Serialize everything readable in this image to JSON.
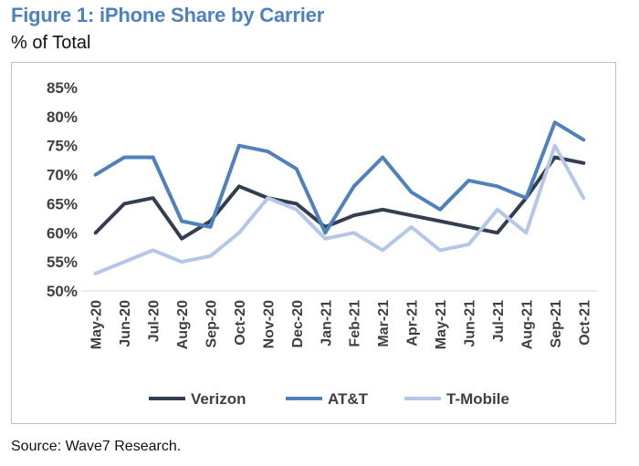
{
  "header": {
    "title": "Figure 1: iPhone Share by Carrier",
    "subtitle": "% of Total"
  },
  "footer": {
    "source": "Source: Wave7 Research."
  },
  "chart_data": {
    "type": "line",
    "title": "Figure 1: iPhone Share by Carrier",
    "ylabel": "% of Total",
    "xlabel": "",
    "ylim": [
      50,
      85
    ],
    "yticks": [
      "50%",
      "55%",
      "60%",
      "65%",
      "70%",
      "75%",
      "80%",
      "85%"
    ],
    "ytick_values": [
      50,
      55,
      60,
      65,
      70,
      75,
      80,
      85
    ],
    "categories": [
      "May-20",
      "Jun-20",
      "Jul-20",
      "Aug-20",
      "Sep-20",
      "Oct-20",
      "Nov-20",
      "Dec-20",
      "Jan-21",
      "Feb-21",
      "Mar-21",
      "Apr-21",
      "May-21",
      "Jun-21",
      "Jul-21",
      "Aug-21",
      "Sep-21",
      "Oct-21"
    ],
    "grid": false,
    "legend_position": "bottom",
    "series": [
      {
        "name": "Verizon",
        "color": "#333f50",
        "values": [
          60,
          65,
          66,
          59,
          62,
          68,
          66,
          65,
          61,
          63,
          64,
          63,
          62,
          61,
          60,
          66,
          73,
          72
        ]
      },
      {
        "name": "AT&T",
        "color": "#4f81bd",
        "values": [
          70,
          73,
          73,
          62,
          61,
          75,
          74,
          71,
          60,
          68,
          73,
          67,
          64,
          69,
          68,
          66,
          79,
          76
        ]
      },
      {
        "name": "T-Mobile",
        "color": "#b4c7e7",
        "values": [
          53,
          55,
          57,
          55,
          56,
          60,
          66,
          64,
          59,
          60,
          57,
          61,
          57,
          58,
          64,
          60,
          75,
          66
        ]
      }
    ]
  }
}
